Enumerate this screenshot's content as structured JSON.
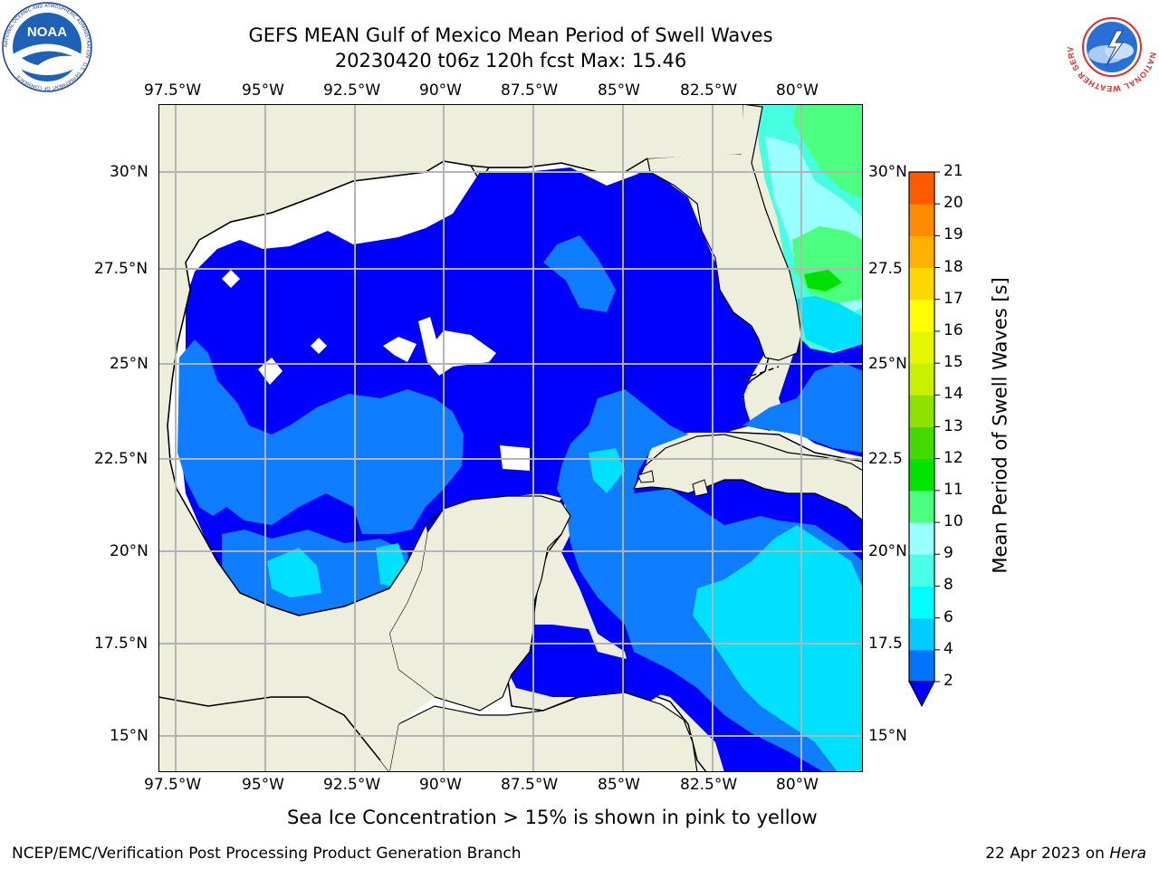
{
  "title": {
    "line1": "GEFS MEAN Gulf of Mexico Mean Period of Swell Waves",
    "line2": "20230420 t06z 120h fcst   Max: 15.46"
  },
  "map": {
    "lon_ticks": [
      "97.5°W",
      "95°W",
      "92.5°W",
      "90°W",
      "87.5°W",
      "85°W",
      "82.5°W",
      "80°W"
    ],
    "lat_ticks_left": [
      "30°N",
      "27.5°N",
      "25°N",
      "22.5°N",
      "20°N",
      "17.5°N",
      "15°N"
    ],
    "lat_ticks_right": [
      "30°N",
      "27.5",
      "25°N",
      "22.5",
      "20°N",
      "17.5",
      "15°N"
    ],
    "land_color": "#eeeedc",
    "water_nodata_color": "#ffffff",
    "grid_color": "#b4b4b4"
  },
  "colorbar": {
    "label": "Mean Period of Swell Waves [s]",
    "tick_labels": [
      "2",
      "4",
      "6",
      "8",
      "9",
      "10",
      "11",
      "12",
      "13",
      "14",
      "15",
      "16",
      "17",
      "18",
      "19",
      "20",
      "21"
    ],
    "colors": [
      "#0074ff",
      "#00ccff",
      "#00ffff",
      "#49ffe8",
      "#99ffff",
      "#4dff7f",
      "#00e400",
      "#44d900",
      "#8ee100",
      "#c8f000",
      "#e6f500",
      "#ffff00",
      "#ffd700",
      "#ffb000",
      "#ff8c00",
      "#ff5a00",
      "#ff2d00",
      "#ff0000"
    ],
    "underflow_color": "#0000ff"
  },
  "field_colors": {
    "deep_blue": "#0000ff",
    "mid_blue": "#0f7dff",
    "cyan": "#00e0ff",
    "aqua": "#45ffe0",
    "light_aqua": "#9bffff",
    "green": "#4dff7f",
    "bright_green": "#00e000"
  },
  "footer": {
    "ice_note": "Sea Ice Concentration > 15% is shown in pink to yellow",
    "branch": "NCEP/EMC/Verification Post Processing Product Generation Branch",
    "date": "22 Apr 2023 on ",
    "machine": "Hera"
  },
  "logos": {
    "noaa": "NOAA",
    "noaa_ring": "NATIONAL OCEANIC AND ATMOSPHERIC ADMINISTRATION · U.S. DEPARTMENT OF COMMERCE",
    "nws_ring": "NATIONAL WEATHER SERVICE"
  }
}
